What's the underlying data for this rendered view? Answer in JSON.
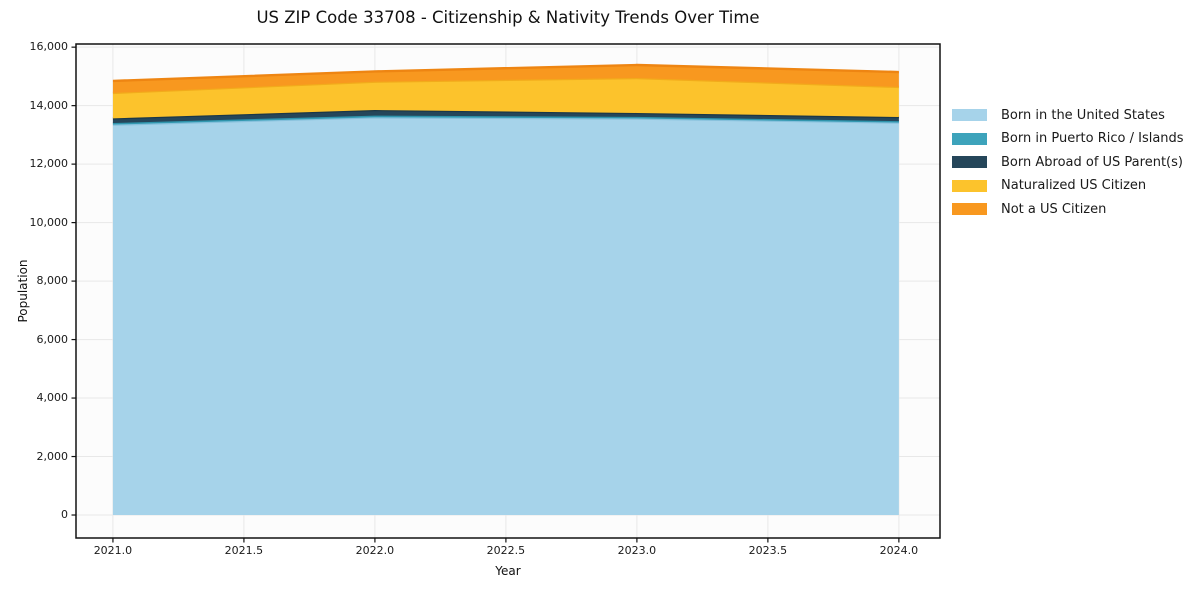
{
  "figure": {
    "title": "US ZIP Code 33708 - Citizenship & Nativity Trends Over Time",
    "xlabel": "Year",
    "ylabel": "Population"
  },
  "colors": {
    "figure_bg": "#ffffff",
    "plot_bg": "#fcfcfc",
    "grid": "#e8e8e8",
    "spine": "#111111",
    "text": "#1a1a1a"
  },
  "chart_data": {
    "type": "area",
    "stacked": true,
    "title": "US ZIP Code 33708 - Citizenship & Nativity Trends Over Time",
    "xlabel": "Year",
    "ylabel": "Population",
    "grid": true,
    "legend_position": "right-outside",
    "x": [
      2021,
      2022,
      2023,
      2024
    ],
    "series": [
      {
        "name": "Born in the United States",
        "color": "#A6D3EA",
        "edge": "#86C0DC",
        "values": [
          13350,
          13600,
          13560,
          13420
        ]
      },
      {
        "name": "Born in Puerto Rico / Islands",
        "color": "#3DA3BB",
        "edge": "#2E93AB",
        "values": [
          55,
          60,
          55,
          50
        ]
      },
      {
        "name": "Born Abroad of US Parent(s)",
        "color": "#25465A",
        "edge": "#1B3748",
        "values": [
          160,
          190,
          135,
          140
        ]
      },
      {
        "name": "Naturalized US Citizen",
        "color": "#FCC32C",
        "edge": "#F2AB1B",
        "values": [
          870,
          970,
          1195,
          1030
        ]
      },
      {
        "name": "Not a US Citizen",
        "color": "#F8981F",
        "edge": "#EE8512",
        "values": [
          410,
          350,
          445,
          510
        ]
      }
    ],
    "totals": [
      14845,
      15170,
      15390,
      15150
    ],
    "xlim": [
      2020.859,
      2024.157
    ],
    "ylim": [
      -786,
      16108
    ],
    "xticks": {
      "values": [
        2021.0,
        2021.5,
        2022.0,
        2022.5,
        2023.0,
        2023.5,
        2024.0
      ],
      "labels": [
        "2021.0",
        "2021.5",
        "2022.0",
        "2022.5",
        "2023.0",
        "2023.5",
        "2024.0"
      ]
    },
    "yticks": {
      "values": [
        0,
        2000,
        4000,
        6000,
        8000,
        10000,
        12000,
        14000,
        16000
      ],
      "labels": [
        "0",
        "2,000",
        "4,000",
        "6,000",
        "8,000",
        "10,000",
        "12,000",
        "14,000",
        "16,000"
      ]
    }
  }
}
